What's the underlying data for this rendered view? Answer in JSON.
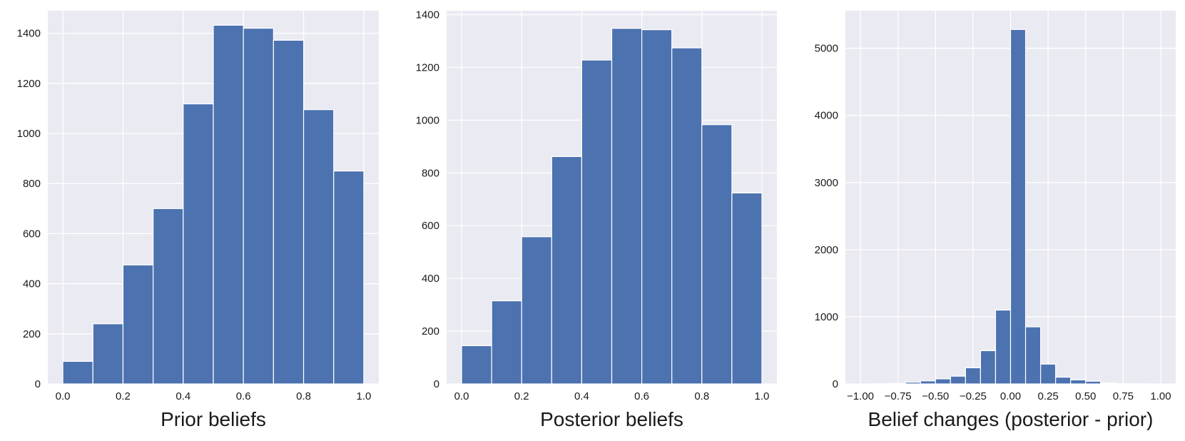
{
  "colors": {
    "background": "#eaeaf2",
    "grid": "#ffffff",
    "bar": "#4c72b0",
    "bar_edge": "#ffffff"
  },
  "chart_data": [
    {
      "type": "bar",
      "title": "",
      "xlabel": "Prior beliefs",
      "ylabel": "",
      "bin_edges": [
        0.0,
        0.1,
        0.2,
        0.3,
        0.4,
        0.5,
        0.6,
        0.7,
        0.8,
        0.9,
        1.0
      ],
      "values": [
        90,
        240,
        475,
        700,
        1118,
        1432,
        1420,
        1372,
        1095,
        850
      ],
      "xlim": [
        -0.05,
        1.05
      ],
      "ylim": [
        0,
        1490
      ],
      "xticks": [
        0.0,
        0.2,
        0.4,
        0.6,
        0.8,
        1.0
      ],
      "xtick_labels": [
        "0.0",
        "0.2",
        "0.4",
        "0.6",
        "0.8",
        "1.0"
      ],
      "yticks": [
        0,
        200,
        400,
        600,
        800,
        1000,
        1200,
        1400
      ],
      "ytick_labels": [
        "0",
        "200",
        "400",
        "600",
        "800",
        "1000",
        "1200",
        "1400"
      ],
      "grid": true
    },
    {
      "type": "bar",
      "title": "",
      "xlabel": "Posterior beliefs",
      "ylabel": "",
      "bin_edges": [
        0.0,
        0.1,
        0.2,
        0.3,
        0.4,
        0.5,
        0.6,
        0.7,
        0.8,
        0.9,
        1.0
      ],
      "values": [
        145,
        315,
        558,
        862,
        1228,
        1348,
        1343,
        1274,
        983,
        724
      ],
      "xlim": [
        -0.05,
        1.05
      ],
      "ylim": [
        0,
        1415
      ],
      "xticks": [
        0.0,
        0.2,
        0.4,
        0.6,
        0.8,
        1.0
      ],
      "xtick_labels": [
        "0.0",
        "0.2",
        "0.4",
        "0.6",
        "0.8",
        "1.0"
      ],
      "yticks": [
        0,
        200,
        400,
        600,
        800,
        1000,
        1200,
        1400
      ],
      "ytick_labels": [
        "0",
        "200",
        "400",
        "600",
        "800",
        "1000",
        "1200",
        "1400"
      ],
      "grid": true
    },
    {
      "type": "bar",
      "title": "",
      "xlabel": "Belief changes (posterior - prior)",
      "ylabel": "",
      "bin_edges": [
        -1.0,
        -0.9,
        -0.8,
        -0.7,
        -0.6,
        -0.5,
        -0.4,
        -0.3,
        -0.2,
        -0.1,
        0.0,
        0.1,
        0.2,
        0.3,
        0.4,
        0.5,
        0.6,
        0.7,
        0.8,
        0.9,
        1.0
      ],
      "values": [
        0,
        3,
        8,
        25,
        45,
        75,
        115,
        240,
        495,
        1100,
        5280,
        850,
        295,
        100,
        60,
        40,
        12,
        4,
        2,
        0
      ],
      "xlim": [
        -1.1,
        1.1
      ],
      "ylim": [
        0,
        5560
      ],
      "xticks": [
        -1.0,
        -0.75,
        -0.5,
        -0.25,
        0.0,
        0.25,
        0.5,
        0.75,
        1.0
      ],
      "xtick_labels": [
        "−1.00",
        "−0.75",
        "−0.50",
        "−0.25",
        "0.00",
        "0.25",
        "0.50",
        "0.75",
        "1.00"
      ],
      "yticks": [
        0,
        1000,
        2000,
        3000,
        4000,
        5000
      ],
      "ytick_labels": [
        "0",
        "1000",
        "2000",
        "3000",
        "4000",
        "5000"
      ],
      "grid": true
    }
  ]
}
